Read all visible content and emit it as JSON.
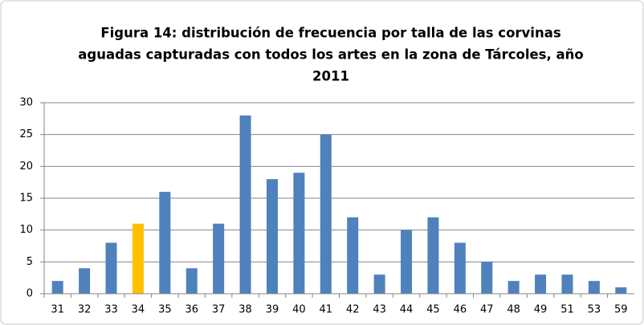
{
  "chart_data": {
    "type": "bar",
    "title": [
      "Figura 14: distribución de frecuencia por talla de las corvinas",
      "aguadas capturadas con todos los artes en la zona de Tárcoles, año",
      "2011"
    ],
    "categories": [
      "31",
      "32",
      "33",
      "34",
      "35",
      "36",
      "37",
      "38",
      "39",
      "40",
      "41",
      "42",
      "43",
      "44",
      "45",
      "46",
      "47",
      "48",
      "49",
      "51",
      "53",
      "59"
    ],
    "values": [
      2,
      4,
      8,
      11,
      16,
      4,
      11,
      28,
      18,
      19,
      25,
      12,
      3,
      10,
      12,
      8,
      5,
      2,
      3,
      3,
      2,
      1
    ],
    "colors": [
      "#4f81bd",
      "#4f81bd",
      "#4f81bd",
      "#ffc000",
      "#4f81bd",
      "#4f81bd",
      "#4f81bd",
      "#4f81bd",
      "#4f81bd",
      "#4f81bd",
      "#4f81bd",
      "#4f81bd",
      "#4f81bd",
      "#4f81bd",
      "#4f81bd",
      "#4f81bd",
      "#4f81bd",
      "#4f81bd",
      "#4f81bd",
      "#4f81bd",
      "#4f81bd",
      "#4f81bd"
    ],
    "ylim": [
      0,
      30
    ],
    "yticks": [
      0,
      5,
      10,
      15,
      20,
      25,
      30
    ],
    "grid": true
  }
}
